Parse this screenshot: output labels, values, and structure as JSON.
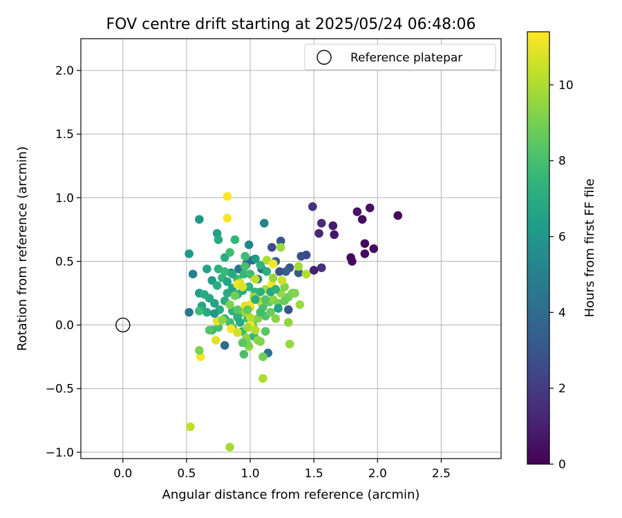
{
  "chart_data": {
    "type": "scatter",
    "title": "FOV centre drift starting at 2025/05/24 06:48:06",
    "xlabel": "Angular distance from reference (arcmin)",
    "ylabel": "Rotation from reference (arcmin)",
    "xlim": [
      -0.33,
      2.97
    ],
    "ylim": [
      -1.05,
      2.25
    ],
    "xticks": [
      0.0,
      0.5,
      1.0,
      1.5,
      2.0,
      2.5
    ],
    "xtick_labels": [
      "0.0",
      "0.5",
      "1.0",
      "1.5",
      "2.0",
      "2.5"
    ],
    "yticks": [
      -1.0,
      -0.5,
      0.0,
      0.5,
      1.0,
      1.5,
      2.0
    ],
    "ytick_labels": [
      "−1.0",
      "−0.5",
      "0.0",
      "0.5",
      "1.0",
      "1.5",
      "2.0"
    ],
    "grid": true,
    "legend": {
      "position": "top-right",
      "entries": [
        "Reference platepar"
      ]
    },
    "reference_point": {
      "name": "Reference platepar",
      "x": 0.0,
      "y": 0.0,
      "marker": "open-circle"
    },
    "colorbar": {
      "label": "Hours from first FF file",
      "colormap": "viridis",
      "range": [
        0,
        11.4
      ],
      "ticks": [
        0,
        2,
        4,
        6,
        8,
        10
      ],
      "tick_labels": [
        "0",
        "2",
        "4",
        "6",
        "8",
        "10"
      ]
    },
    "series": [
      {
        "marker": "filled-circle",
        "points": [
          {
            "x": 2.16,
            "y": 0.86,
            "h": 0.2
          },
          {
            "x": 1.94,
            "y": 0.92,
            "h": 0.5
          },
          {
            "x": 1.88,
            "y": 0.83,
            "h": 0.4
          },
          {
            "x": 1.84,
            "y": 0.89,
            "h": 0.6
          },
          {
            "x": 1.9,
            "y": 0.64,
            "h": 0.3
          },
          {
            "x": 1.97,
            "y": 0.6,
            "h": 0.4
          },
          {
            "x": 1.9,
            "y": 0.56,
            "h": 0.3
          },
          {
            "x": 1.79,
            "y": 0.53,
            "h": 0.2
          },
          {
            "x": 1.8,
            "y": 0.5,
            "h": 0.3
          },
          {
            "x": 1.65,
            "y": 0.78,
            "h": 0.8
          },
          {
            "x": 1.66,
            "y": 0.71,
            "h": 0.7
          },
          {
            "x": 1.56,
            "y": 0.8,
            "h": 1.4
          },
          {
            "x": 1.54,
            "y": 0.72,
            "h": 1.2
          },
          {
            "x": 1.49,
            "y": 0.93,
            "h": 1.6
          },
          {
            "x": 1.5,
            "y": 0.43,
            "h": 1.0
          },
          {
            "x": 1.56,
            "y": 0.45,
            "h": 1.6
          },
          {
            "x": 1.44,
            "y": 0.55,
            "h": 2.5
          },
          {
            "x": 1.4,
            "y": 0.54,
            "h": 2.8
          },
          {
            "x": 1.38,
            "y": 0.41,
            "h": 3.2
          },
          {
            "x": 1.31,
            "y": 0.45,
            "h": 3.0
          },
          {
            "x": 1.28,
            "y": 0.42,
            "h": 3.5
          },
          {
            "x": 1.23,
            "y": 0.42,
            "h": 2.9
          },
          {
            "x": 1.3,
            "y": 0.12,
            "h": 3.0
          },
          {
            "x": 1.24,
            "y": 0.66,
            "h": 3.2
          },
          {
            "x": 1.17,
            "y": 0.61,
            "h": 2.6
          },
          {
            "x": 1.18,
            "y": 0.48,
            "h": 3.8
          },
          {
            "x": 1.2,
            "y": 0.5,
            "h": 3.5
          },
          {
            "x": 1.11,
            "y": 0.8,
            "h": 5.0
          },
          {
            "x": 1.14,
            "y": -0.22,
            "h": 4.5
          },
          {
            "x": 1.02,
            "y": 0.51,
            "h": 3.6
          },
          {
            "x": 1.09,
            "y": 0.44,
            "h": 3.9
          },
          {
            "x": 1.06,
            "y": 0.36,
            "h": 4.8
          },
          {
            "x": 0.97,
            "y": 0.48,
            "h": 4.0
          },
          {
            "x": 0.91,
            "y": 0.44,
            "h": 4.6
          },
          {
            "x": 0.85,
            "y": 0.41,
            "h": 4.7
          },
          {
            "x": 0.99,
            "y": 0.63,
            "h": 5.2
          },
          {
            "x": 0.8,
            "y": -0.16,
            "h": 4.0
          },
          {
            "x": 0.52,
            "y": 0.1,
            "h": 4.6
          },
          {
            "x": 0.55,
            "y": 0.4,
            "h": 5.0
          },
          {
            "x": 0.6,
            "y": 0.83,
            "h": 6.0
          },
          {
            "x": 0.52,
            "y": 0.56,
            "h": 6.0
          },
          {
            "x": 0.74,
            "y": 0.72,
            "h": 6.5
          },
          {
            "x": 0.75,
            "y": 0.67,
            "h": 6.9
          },
          {
            "x": 0.88,
            "y": 0.67,
            "h": 7.4
          },
          {
            "x": 0.66,
            "y": 0.44,
            "h": 6.6
          },
          {
            "x": 0.7,
            "y": 0.35,
            "h": 6.3
          },
          {
            "x": 0.75,
            "y": 0.44,
            "h": 7.2
          },
          {
            "x": 0.8,
            "y": 0.53,
            "h": 7.0
          },
          {
            "x": 0.84,
            "y": 0.57,
            "h": 7.8
          },
          {
            "x": 0.6,
            "y": 0.25,
            "h": 6.4
          },
          {
            "x": 0.64,
            "y": 0.24,
            "h": 7.0
          },
          {
            "x": 0.68,
            "y": 0.21,
            "h": 6.8
          },
          {
            "x": 0.62,
            "y": 0.15,
            "h": 6.8
          },
          {
            "x": 0.66,
            "y": 0.1,
            "h": 6.9
          },
          {
            "x": 0.6,
            "y": 0.11,
            "h": 7.8
          },
          {
            "x": 0.72,
            "y": 0.17,
            "h": 6.6
          },
          {
            "x": 0.76,
            "y": 0.12,
            "h": 7.0
          },
          {
            "x": 0.7,
            "y": -0.04,
            "h": 7.4
          },
          {
            "x": 0.68,
            "y": -0.04,
            "h": 8.3
          },
          {
            "x": 0.75,
            "y": -0.02,
            "h": 8.0
          },
          {
            "x": 0.8,
            "y": 0.05,
            "h": 7.5
          },
          {
            "x": 0.84,
            "y": 0.02,
            "h": 7.9
          },
          {
            "x": 0.86,
            "y": 0.11,
            "h": 7.2
          },
          {
            "x": 0.9,
            "y": 0.06,
            "h": 7.3
          },
          {
            "x": 0.94,
            "y": 0.1,
            "h": 7.6
          },
          {
            "x": 0.98,
            "y": 0.05,
            "h": 7.8
          },
          {
            "x": 0.86,
            "y": -0.02,
            "h": 8.1
          },
          {
            "x": 0.8,
            "y": 0.19,
            "h": 6.9
          },
          {
            "x": 0.82,
            "y": 0.25,
            "h": 7.1
          },
          {
            "x": 0.86,
            "y": 0.29,
            "h": 6.7
          },
          {
            "x": 0.9,
            "y": 0.24,
            "h": 7.2
          },
          {
            "x": 0.94,
            "y": 0.27,
            "h": 6.9
          },
          {
            "x": 0.99,
            "y": 0.3,
            "h": 7.3
          },
          {
            "x": 1.04,
            "y": 0.26,
            "h": 7.5
          },
          {
            "x": 0.78,
            "y": 0.37,
            "h": 7.4
          },
          {
            "x": 0.74,
            "y": 0.31,
            "h": 7.1
          },
          {
            "x": 0.9,
            "y": 0.36,
            "h": 7.8
          },
          {
            "x": 0.95,
            "y": 0.4,
            "h": 7.6
          },
          {
            "x": 1.0,
            "y": 0.4,
            "h": 7.9
          },
          {
            "x": 0.92,
            "y": 0.33,
            "h": 10.6
          },
          {
            "x": 0.96,
            "y": 0.54,
            "h": 7.8
          },
          {
            "x": 1.04,
            "y": 0.52,
            "h": 6.3
          },
          {
            "x": 1.08,
            "y": 0.47,
            "h": 7.4
          },
          {
            "x": 0.8,
            "y": 0.42,
            "h": 7.7
          },
          {
            "x": 0.82,
            "y": 0.34,
            "h": 6.6
          },
          {
            "x": 0.86,
            "y": 0.4,
            "h": 6.9
          },
          {
            "x": 0.96,
            "y": 0.46,
            "h": 8.0
          },
          {
            "x": 0.9,
            "y": 0.12,
            "h": 8.4
          },
          {
            "x": 0.92,
            "y": 0.02,
            "h": 7.0
          },
          {
            "x": 0.94,
            "y": -0.05,
            "h": 7.7
          },
          {
            "x": 0.97,
            "y": -0.1,
            "h": 9.5
          },
          {
            "x": 0.95,
            "y": -0.23,
            "h": 8.1
          },
          {
            "x": 0.99,
            "y": -0.17,
            "h": 9.6
          },
          {
            "x": 0.98,
            "y": -0.15,
            "h": 9.0
          },
          {
            "x": 1.03,
            "y": -0.09,
            "h": 7.5
          },
          {
            "x": 1.06,
            "y": -0.12,
            "h": 9.4
          },
          {
            "x": 1.08,
            "y": -0.13,
            "h": 9.2
          },
          {
            "x": 1.1,
            "y": -0.25,
            "h": 8.9
          },
          {
            "x": 1.12,
            "y": -0.05,
            "h": 8.4
          },
          {
            "x": 1.02,
            "y": 0.0,
            "h": 8.8
          },
          {
            "x": 1.06,
            "y": 0.05,
            "h": 9.3
          },
          {
            "x": 1.12,
            "y": 0.07,
            "h": 8.2
          },
          {
            "x": 1.16,
            "y": 0.1,
            "h": 8.8
          },
          {
            "x": 1.2,
            "y": 0.05,
            "h": 9.3
          },
          {
            "x": 1.1,
            "y": 0.14,
            "h": 8.1
          },
          {
            "x": 1.15,
            "y": 0.18,
            "h": 8.7
          },
          {
            "x": 1.18,
            "y": 0.2,
            "h": 9.4
          },
          {
            "x": 1.22,
            "y": 0.17,
            "h": 9.0
          },
          {
            "x": 1.24,
            "y": 0.25,
            "h": 9.6
          },
          {
            "x": 1.27,
            "y": 0.3,
            "h": 9.2
          },
          {
            "x": 1.3,
            "y": 0.22,
            "h": 8.9
          },
          {
            "x": 1.33,
            "y": 0.25,
            "h": 9.1
          },
          {
            "x": 1.3,
            "y": 0.02,
            "h": 9.5
          },
          {
            "x": 1.31,
            "y": -0.15,
            "h": 9.6
          },
          {
            "x": 1.1,
            "y": -0.42,
            "h": 10.0
          },
          {
            "x": 1.0,
            "y": 0.14,
            "h": 10.4
          },
          {
            "x": 0.96,
            "y": 0.15,
            "h": 10.9
          },
          {
            "x": 1.0,
            "y": 0.16,
            "h": 11.2
          },
          {
            "x": 1.03,
            "y": 0.22,
            "h": 9.8
          },
          {
            "x": 1.07,
            "y": 0.19,
            "h": 10.2
          },
          {
            "x": 1.12,
            "y": 0.28,
            "h": 9.9
          },
          {
            "x": 1.17,
            "y": 0.32,
            "h": 11.3
          },
          {
            "x": 1.18,
            "y": 0.37,
            "h": 9.6
          },
          {
            "x": 1.13,
            "y": 0.51,
            "h": 10.0
          },
          {
            "x": 1.24,
            "y": 0.61,
            "h": 9.7
          },
          {
            "x": 1.18,
            "y": 0.48,
            "h": 11.3
          },
          {
            "x": 1.25,
            "y": 0.35,
            "h": 10.5
          },
          {
            "x": 1.38,
            "y": 0.46,
            "h": 9.8
          },
          {
            "x": 1.44,
            "y": 0.4,
            "h": 10.1
          },
          {
            "x": 1.39,
            "y": 0.16,
            "h": 9.7
          },
          {
            "x": 1.35,
            "y": 0.25,
            "h": 9.2
          },
          {
            "x": 0.9,
            "y": 0.32,
            "h": 11.2
          },
          {
            "x": 0.94,
            "y": 0.3,
            "h": 10.8
          },
          {
            "x": 1.04,
            "y": 0.36,
            "h": 10.4
          },
          {
            "x": 1.0,
            "y": 0.0,
            "h": 11.3
          },
          {
            "x": 0.85,
            "y": -0.03,
            "h": 11.3
          },
          {
            "x": 0.73,
            "y": -0.12,
            "h": 10.9
          },
          {
            "x": 0.74,
            "y": 0.03,
            "h": 11.0
          },
          {
            "x": 0.61,
            "y": -0.25,
            "h": 11.2
          },
          {
            "x": 0.6,
            "y": -0.2,
            "h": 9.1
          },
          {
            "x": 0.53,
            "y": -0.8,
            "h": 10.3
          },
          {
            "x": 0.84,
            "y": -0.96,
            "h": 9.8
          },
          {
            "x": 0.82,
            "y": 1.01,
            "h": 11.4
          },
          {
            "x": 0.82,
            "y": 0.84,
            "h": 11.3
          },
          {
            "x": 0.96,
            "y": 0.1,
            "h": 9.6
          },
          {
            "x": 1.0,
            "y": 0.06,
            "h": 10.1
          },
          {
            "x": 0.98,
            "y": 0.12,
            "h": 8.6
          },
          {
            "x": 1.08,
            "y": 0.1,
            "h": 7.9
          },
          {
            "x": 1.12,
            "y": 0.2,
            "h": 8.3
          },
          {
            "x": 1.04,
            "y": 0.2,
            "h": 7.0
          },
          {
            "x": 1.08,
            "y": 0.26,
            "h": 7.2
          },
          {
            "x": 1.16,
            "y": 0.26,
            "h": 6.8
          },
          {
            "x": 1.13,
            "y": 0.42,
            "h": 7.2
          },
          {
            "x": 1.2,
            "y": 0.28,
            "h": 7.4
          },
          {
            "x": 1.22,
            "y": 0.13,
            "h": 6.5
          },
          {
            "x": 1.27,
            "y": 0.19,
            "h": 8.7
          },
          {
            "x": 0.94,
            "y": -0.14,
            "h": 8.4
          },
          {
            "x": 0.9,
            "y": -0.06,
            "h": 10.6
          },
          {
            "x": 0.98,
            "y": -0.02,
            "h": 9.8
          },
          {
            "x": 1.04,
            "y": -0.04,
            "h": 10.1
          },
          {
            "x": 0.88,
            "y": 0.23,
            "h": 8.9
          },
          {
            "x": 0.84,
            "y": 0.16,
            "h": 9.2
          },
          {
            "x": 0.78,
            "y": 0.04,
            "h": 9.4
          },
          {
            "x": 0.72,
            "y": 0.09,
            "h": 6.0
          }
        ]
      }
    ]
  }
}
